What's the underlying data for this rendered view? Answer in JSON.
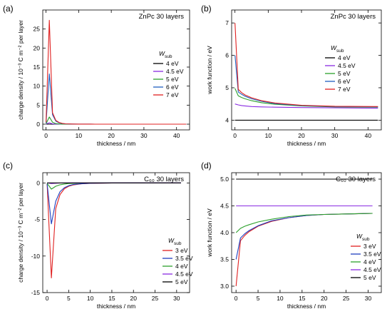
{
  "chart_data": [
    {
      "panel_label": "(a)",
      "type": "line",
      "title": "ZnPc 30 layers",
      "xlabel": "thickness / nm",
      "ylabel": "charge density / 10⁻³ C m⁻² per layer",
      "xlim": [
        -1,
        44
      ],
      "ylim": [
        -1.5,
        30
      ],
      "xticks": [
        0,
        10,
        20,
        30,
        40
      ],
      "yticks": [
        0,
        5,
        10,
        15,
        20,
        25
      ],
      "legend_title": "W_sub",
      "legend_position": "right",
      "series": [
        {
          "name": "4 eV",
          "color": "#000000",
          "x": [
            0,
            1,
            2,
            3,
            4,
            5,
            6,
            8,
            10,
            15,
            20,
            30,
            43
          ],
          "y": [
            0,
            0,
            0,
            0,
            0,
            0,
            0,
            0,
            0,
            0,
            0,
            0,
            0
          ]
        },
        {
          "name": "4.5 eV",
          "color": "#8a2be2",
          "x": [
            0,
            1,
            2,
            3,
            4,
            5,
            6,
            8,
            10,
            15,
            20,
            30,
            43
          ],
          "y": [
            0.05,
            0.35,
            0.1,
            0.03,
            0.01,
            0,
            0,
            0,
            0,
            0,
            0,
            0,
            0
          ]
        },
        {
          "name": "5 eV",
          "color": "#2ca02c",
          "x": [
            0,
            1,
            2,
            3,
            4,
            5,
            6,
            8,
            10,
            15,
            20,
            30,
            43
          ],
          "y": [
            0.1,
            1.9,
            0.5,
            0.15,
            0.05,
            0.02,
            0.01,
            0,
            0,
            0,
            0,
            0,
            0
          ]
        },
        {
          "name": "6 eV",
          "color": "#1f5fbf",
          "x": [
            0,
            1,
            2,
            3,
            4,
            5,
            6,
            8,
            10,
            15,
            20,
            30,
            43
          ],
          "y": [
            0.3,
            13.2,
            2.5,
            0.8,
            0.35,
            0.15,
            0.08,
            0.03,
            0.01,
            0,
            0,
            0,
            0
          ]
        },
        {
          "name": "7 eV",
          "color": "#e02020",
          "x": [
            0,
            1,
            2,
            3,
            4,
            5,
            6,
            8,
            10,
            15,
            20,
            30,
            43
          ],
          "y": [
            0.5,
            27.3,
            3.0,
            1.0,
            0.45,
            0.2,
            0.1,
            0.04,
            0.02,
            0,
            0,
            0,
            0
          ]
        }
      ]
    },
    {
      "panel_label": "(b)",
      "type": "line",
      "title": "ZnPc 30 layers",
      "xlabel": "thickness / nm",
      "ylabel": "work function / eV",
      "xlim": [
        -1,
        44
      ],
      "ylim": [
        3.7,
        7.4
      ],
      "xticks": [
        0,
        10,
        20,
        30,
        40
      ],
      "yticks": [
        4,
        5,
        6,
        7
      ],
      "legend_title": "W_sub",
      "legend_position": "right",
      "series": [
        {
          "name": "4 eV",
          "color": "#000000",
          "x": [
            0,
            1,
            2,
            3,
            5,
            8,
            12,
            20,
            30,
            43
          ],
          "y": [
            4.0,
            4.0,
            4.0,
            4.0,
            4.0,
            4.0,
            4.0,
            4.0,
            4.0,
            4.0
          ]
        },
        {
          "name": "4.5 eV",
          "color": "#8a2be2",
          "x": [
            0,
            1,
            2,
            3,
            5,
            8,
            12,
            20,
            30,
            43
          ],
          "y": [
            4.5,
            4.47,
            4.45,
            4.44,
            4.42,
            4.41,
            4.4,
            4.39,
            4.38,
            4.37
          ]
        },
        {
          "name": "5 eV",
          "color": "#2ca02c",
          "x": [
            0,
            1,
            2,
            3,
            5,
            8,
            12,
            20,
            30,
            43
          ],
          "y": [
            4.98,
            4.75,
            4.7,
            4.66,
            4.6,
            4.54,
            4.49,
            4.44,
            4.41,
            4.4
          ]
        },
        {
          "name": "6 eV",
          "color": "#1f5fbf",
          "x": [
            0,
            1,
            2,
            3,
            5,
            8,
            12,
            20,
            30,
            43
          ],
          "y": [
            6.0,
            4.87,
            4.8,
            4.74,
            4.66,
            4.58,
            4.51,
            4.45,
            4.42,
            4.41
          ]
        },
        {
          "name": "7 eV",
          "color": "#e02020",
          "x": [
            0,
            1,
            2,
            3,
            5,
            8,
            12,
            20,
            30,
            43
          ],
          "y": [
            7.0,
            4.95,
            4.85,
            4.78,
            4.69,
            4.6,
            4.53,
            4.46,
            4.43,
            4.42
          ]
        }
      ]
    },
    {
      "panel_label": "(c)",
      "type": "line",
      "title": "C₆₀ 30 layers",
      "xlabel": "thickness / nm",
      "ylabel": "charge density / 10⁻³ C m⁻² per layer",
      "xlim": [
        -1,
        33
      ],
      "ylim": [
        -15,
        1.4
      ],
      "xticks": [
        0,
        5,
        10,
        15,
        20,
        25,
        30
      ],
      "yticks": [
        -15,
        -10,
        -5,
        0
      ],
      "legend_title": "W_sub",
      "legend_position": "lower right",
      "series": [
        {
          "name": "3 eV",
          "color": "#e02020",
          "x": [
            0,
            1,
            2,
            3,
            4,
            5,
            6,
            8,
            10,
            15,
            20,
            25,
            31
          ],
          "y": [
            -0.1,
            -13.0,
            -3.5,
            -1.6,
            -0.8,
            -0.45,
            -0.28,
            -0.12,
            -0.05,
            -0.01,
            0,
            0,
            0
          ]
        },
        {
          "name": "3.5 eV",
          "color": "#1f3fbf",
          "x": [
            0,
            1,
            2,
            3,
            4,
            5,
            6,
            8,
            10,
            15,
            20,
            25,
            31
          ],
          "y": [
            -0.1,
            -5.6,
            -2.5,
            -1.2,
            -0.65,
            -0.38,
            -0.22,
            -0.1,
            -0.04,
            -0.01,
            0,
            0,
            0
          ]
        },
        {
          "name": "4 eV",
          "color": "#2ca02c",
          "x": [
            0,
            1,
            2,
            3,
            4,
            5,
            6,
            8,
            10,
            15,
            20,
            25,
            31
          ],
          "y": [
            -0.05,
            -0.85,
            -0.45,
            -0.25,
            -0.15,
            -0.08,
            -0.05,
            -0.02,
            -0.01,
            0,
            0,
            0,
            0
          ]
        },
        {
          "name": "4.5 eV",
          "color": "#8a2be2",
          "x": [
            0,
            1,
            2,
            3,
            4,
            5,
            6,
            8,
            10,
            15,
            20,
            25,
            31
          ],
          "y": [
            0,
            -0.08,
            -0.04,
            -0.02,
            -0.01,
            0,
            0,
            0,
            0,
            0,
            0,
            0,
            0
          ]
        },
        {
          "name": "5 eV",
          "color": "#000000",
          "x": [
            0,
            1,
            2,
            3,
            4,
            5,
            6,
            8,
            10,
            15,
            20,
            25,
            31
          ],
          "y": [
            0,
            0,
            0,
            0,
            0,
            0,
            0,
            0,
            0,
            0,
            0,
            0,
            0
          ]
        }
      ]
    },
    {
      "panel_label": "(d)",
      "type": "line",
      "title": "C₆₀ 30 layers",
      "xlabel": "thickness / nm",
      "ylabel": "work function / eV",
      "xlim": [
        -1,
        33
      ],
      "ylim": [
        2.88,
        5.12
      ],
      "xticks": [
        0,
        5,
        10,
        15,
        20,
        25,
        30
      ],
      "yticks": [
        3.0,
        3.5,
        4.0,
        4.5,
        5.0
      ],
      "legend_title": "W_sub",
      "legend_position": "lower right",
      "series": [
        {
          "name": "3 eV",
          "color": "#e02020",
          "x": [
            0,
            1,
            2,
            3,
            5,
            8,
            12,
            16,
            20,
            25,
            31
          ],
          "y": [
            3.0,
            3.85,
            3.95,
            4.02,
            4.12,
            4.21,
            4.28,
            4.32,
            4.34,
            4.35,
            4.36
          ]
        },
        {
          "name": "3.5 eV",
          "color": "#1f3fbf",
          "x": [
            0,
            1,
            2,
            3,
            5,
            8,
            12,
            16,
            20,
            25,
            31
          ],
          "y": [
            3.5,
            3.9,
            3.98,
            4.04,
            4.13,
            4.22,
            4.28,
            4.32,
            4.34,
            4.35,
            4.36
          ]
        },
        {
          "name": "4 eV",
          "color": "#2ca02c",
          "x": [
            0,
            1,
            2,
            3,
            5,
            8,
            12,
            16,
            20,
            25,
            31
          ],
          "y": [
            4.0,
            4.08,
            4.12,
            4.15,
            4.2,
            4.25,
            4.3,
            4.33,
            4.34,
            4.35,
            4.36
          ]
        },
        {
          "name": "4.5 eV",
          "color": "#8a2be2",
          "x": [
            0,
            1,
            2,
            3,
            5,
            8,
            12,
            16,
            20,
            25,
            31
          ],
          "y": [
            4.5,
            4.5,
            4.5,
            4.5,
            4.5,
            4.5,
            4.5,
            4.5,
            4.5,
            4.5,
            4.5
          ]
        },
        {
          "name": "5 eV",
          "color": "#000000",
          "x": [
            0,
            1,
            2,
            3,
            5,
            8,
            12,
            16,
            20,
            25,
            31
          ],
          "y": [
            5.0,
            5.0,
            5.0,
            5.0,
            5.0,
            5.0,
            5.0,
            5.0,
            5.0,
            5.0,
            5.0
          ]
        }
      ]
    }
  ]
}
